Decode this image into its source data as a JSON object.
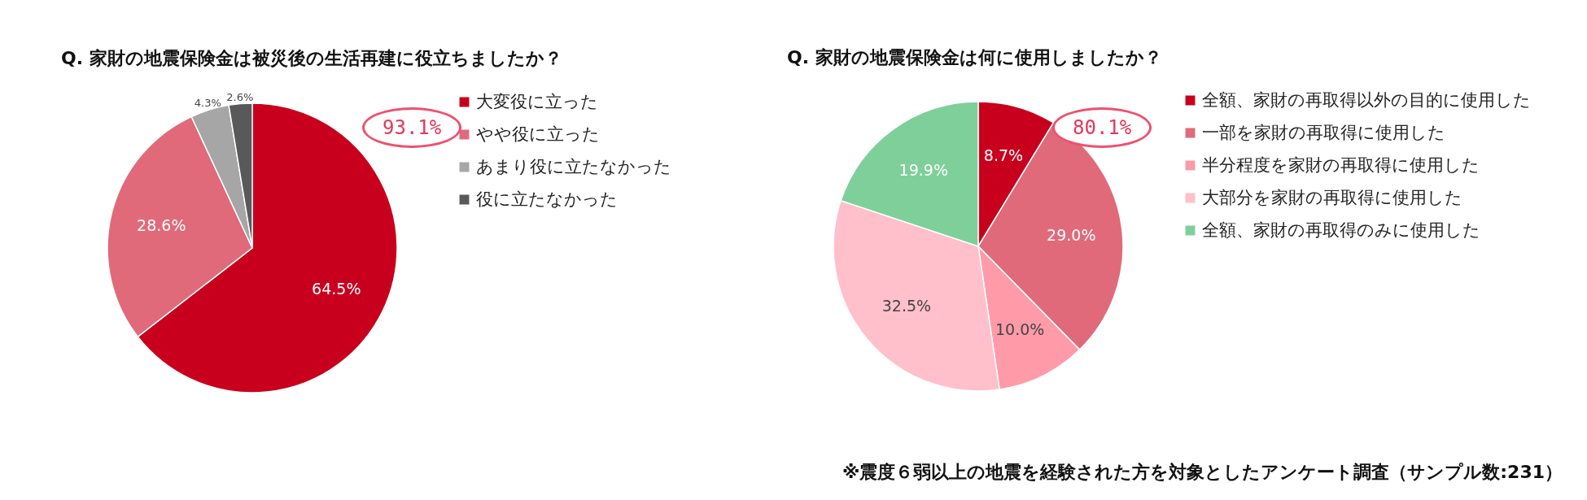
{
  "chart_data": [
    {
      "type": "pie",
      "title": "Q. 家財の地震保険金は被災後の生活再建に役立ちましたか？",
      "categories": [
        "大変役に立った",
        "やや役に立った",
        "あまり役に立たなかった",
        "役に立たなかった"
      ],
      "values": [
        64.5,
        28.6,
        4.3,
        2.6
      ],
      "colors": [
        "#c8001e",
        "#e06a7a",
        "#a6a6a6",
        "#595959"
      ],
      "value_labels": [
        "64.5%",
        "28.6%",
        "4.3%",
        "2.6%"
      ],
      "legend": "right",
      "annotations": [
        "93.1%"
      ]
    },
    {
      "type": "pie",
      "title": "Q. 家財の地震保険金は何に使用しましたか？",
      "categories": [
        "全額、家財の再取得以外の目的に使用した",
        "一部を家財の再取得に使用した",
        "半分程度を家財の再取得に使用した",
        "大部分を家財の再取得に使用した",
        "全額、家財の再取得のみに使用した"
      ],
      "values": [
        8.7,
        29.0,
        10.0,
        32.5,
        19.9
      ],
      "colors": [
        "#c8001e",
        "#e06a7a",
        "#ff9aa8",
        "#ffc0cb",
        "#7fcf9a"
      ],
      "value_labels": [
        "8.7%",
        "29.0%",
        "10.0%",
        "32.5%",
        "19.9%"
      ],
      "legend": "right",
      "annotations": [
        "80.1%",
        "※震度６弱以上の地震を経験された方を対象としたアンケート調査（サンプル数:231）"
      ]
    }
  ]
}
